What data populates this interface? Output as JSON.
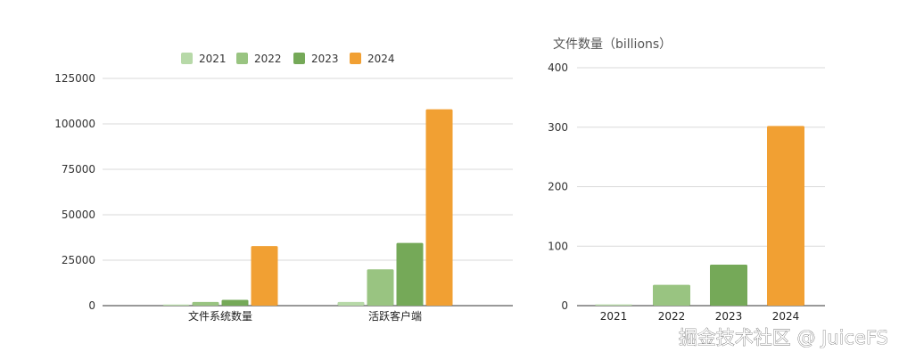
{
  "colors": {
    "2021": "#b7d9a8",
    "2022": "#99c481",
    "2023": "#75a958",
    "2024": "#f1a033",
    "grid": "#d9d9d9",
    "axis": "#333333"
  },
  "chart_data": [
    {
      "type": "bar",
      "title": "",
      "categories": [
        "文件系统数量",
        "活跃客户端"
      ],
      "series": [
        {
          "name": "2021",
          "values": [
            600,
            2000
          ]
        },
        {
          "name": "2022",
          "values": [
            2000,
            20000
          ]
        },
        {
          "name": "2023",
          "values": [
            3200,
            34500
          ]
        },
        {
          "name": "2024",
          "values": [
            32800,
            108000
          ]
        }
      ],
      "ylim": [
        0,
        125000
      ],
      "yticks": [
        "0",
        "25000",
        "50000",
        "75000",
        "100000",
        "125000"
      ],
      "legend": "top",
      "grid": true
    },
    {
      "type": "bar",
      "title": "文件数量（billions）",
      "categories": [
        "2021",
        "2022",
        "2023",
        "2024"
      ],
      "values": [
        2,
        35,
        69,
        302
      ],
      "ylim": [
        0,
        400
      ],
      "yticks": [
        "0",
        "100",
        "200",
        "300",
        "400"
      ],
      "legend": "none",
      "grid": true
    }
  ],
  "watermark": "掘金技术社区 @ JuiceFS"
}
